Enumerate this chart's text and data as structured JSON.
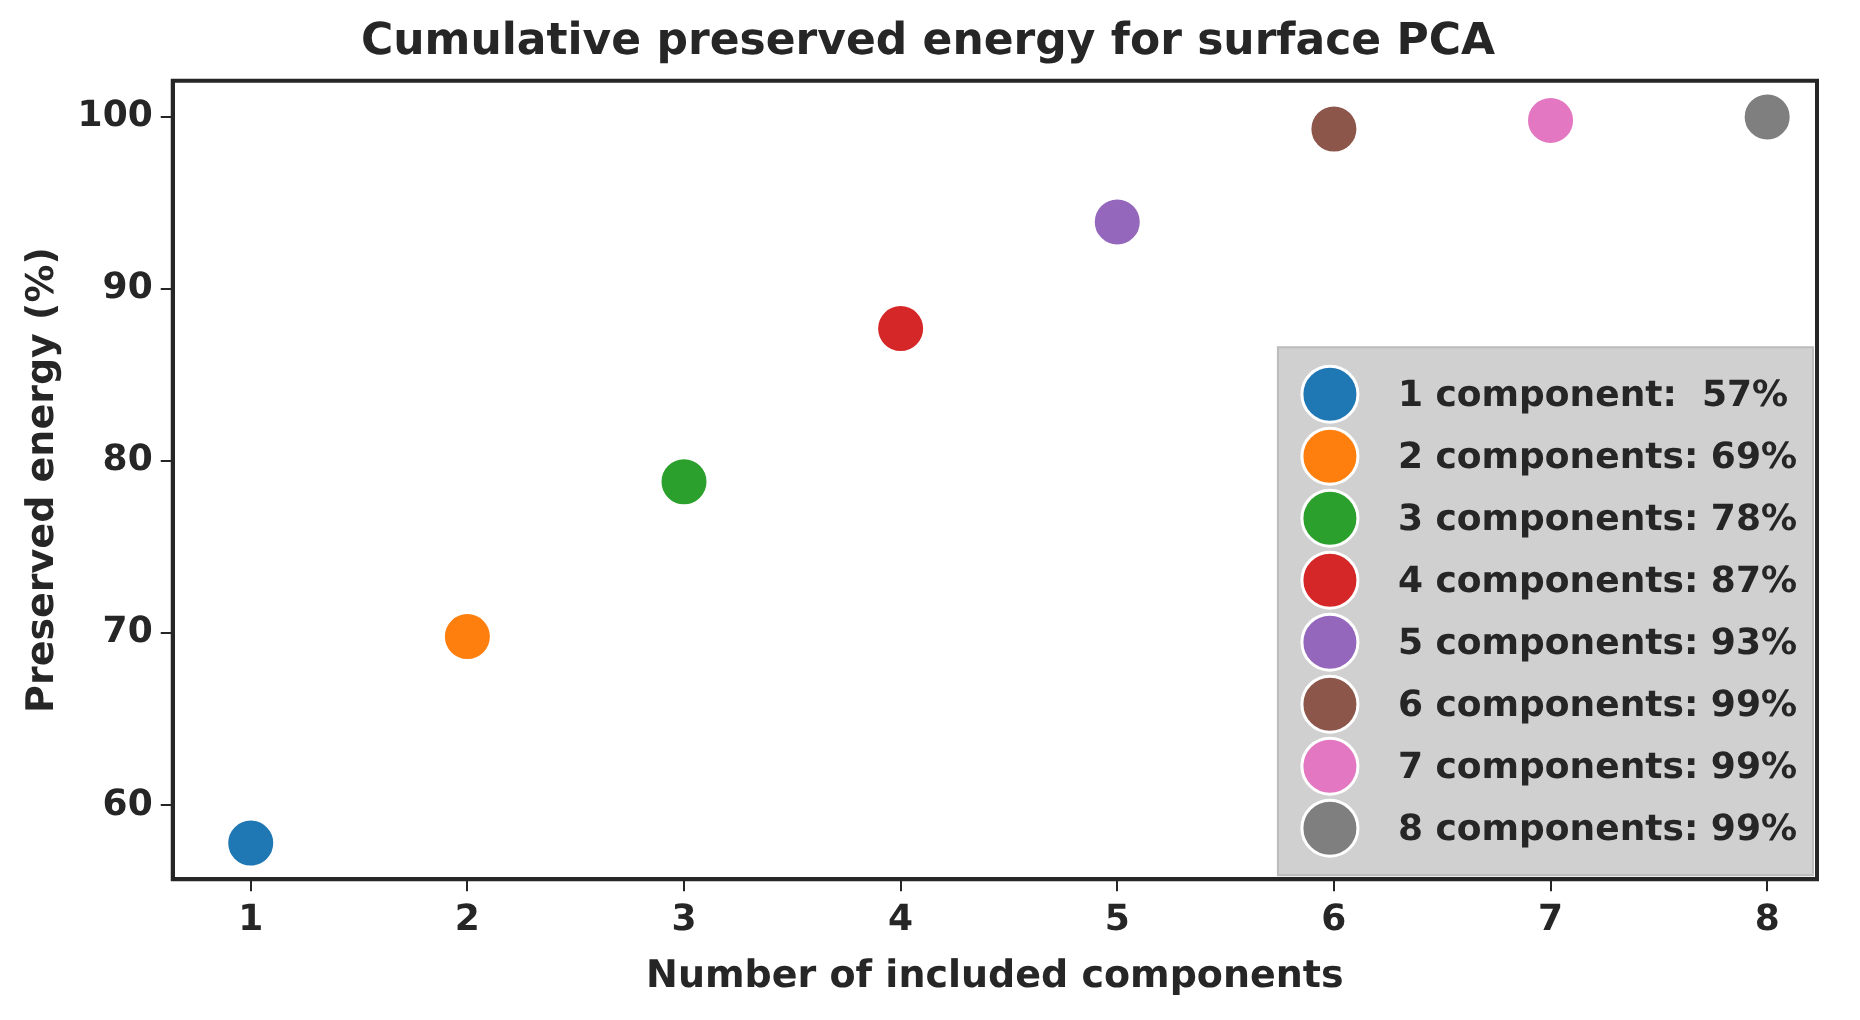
{
  "chart_data": {
    "type": "scatter",
    "title": "Cumulative preserved energy for surface PCA",
    "xlabel": "Number of included components",
    "ylabel": "Preserved energy (%)",
    "xlim": [
      0.64,
      8.23
    ],
    "xticks": [
      1,
      2,
      3,
      4,
      5,
      6,
      7,
      8
    ],
    "ylim": [
      55.7,
      102.1
    ],
    "yticks": [
      60,
      70,
      80,
      90,
      100
    ],
    "grid": false,
    "legend": "bottom right",
    "marker": "circle",
    "series": [
      {
        "name": "1 component:  57%",
        "color": "#1f77b4",
        "x": [
          1
        ],
        "values": [
          57.8
        ]
      },
      {
        "name": "2 components: 69%",
        "color": "#ff7f0e",
        "x": [
          2
        ],
        "values": [
          69.8
        ]
      },
      {
        "name": "3 components: 78%",
        "color": "#2ca02c",
        "x": [
          3
        ],
        "values": [
          78.8
        ]
      },
      {
        "name": "4 components: 87%",
        "color": "#d62728",
        "x": [
          4
        ],
        "values": [
          87.7
        ]
      },
      {
        "name": "5 components: 93%",
        "color": "#9467bd",
        "x": [
          5
        ],
        "values": [
          93.9
        ]
      },
      {
        "name": "6 components: 99%",
        "color": "#8c564b",
        "x": [
          6
        ],
        "values": [
          99.3
        ]
      },
      {
        "name": "7 components: 99%",
        "color": "#e377c2",
        "x": [
          7
        ],
        "values": [
          99.8
        ]
      },
      {
        "name": "8 components: 99%",
        "color": "#7f7f7f",
        "x": [
          8
        ],
        "values": [
          100
        ]
      }
    ]
  }
}
